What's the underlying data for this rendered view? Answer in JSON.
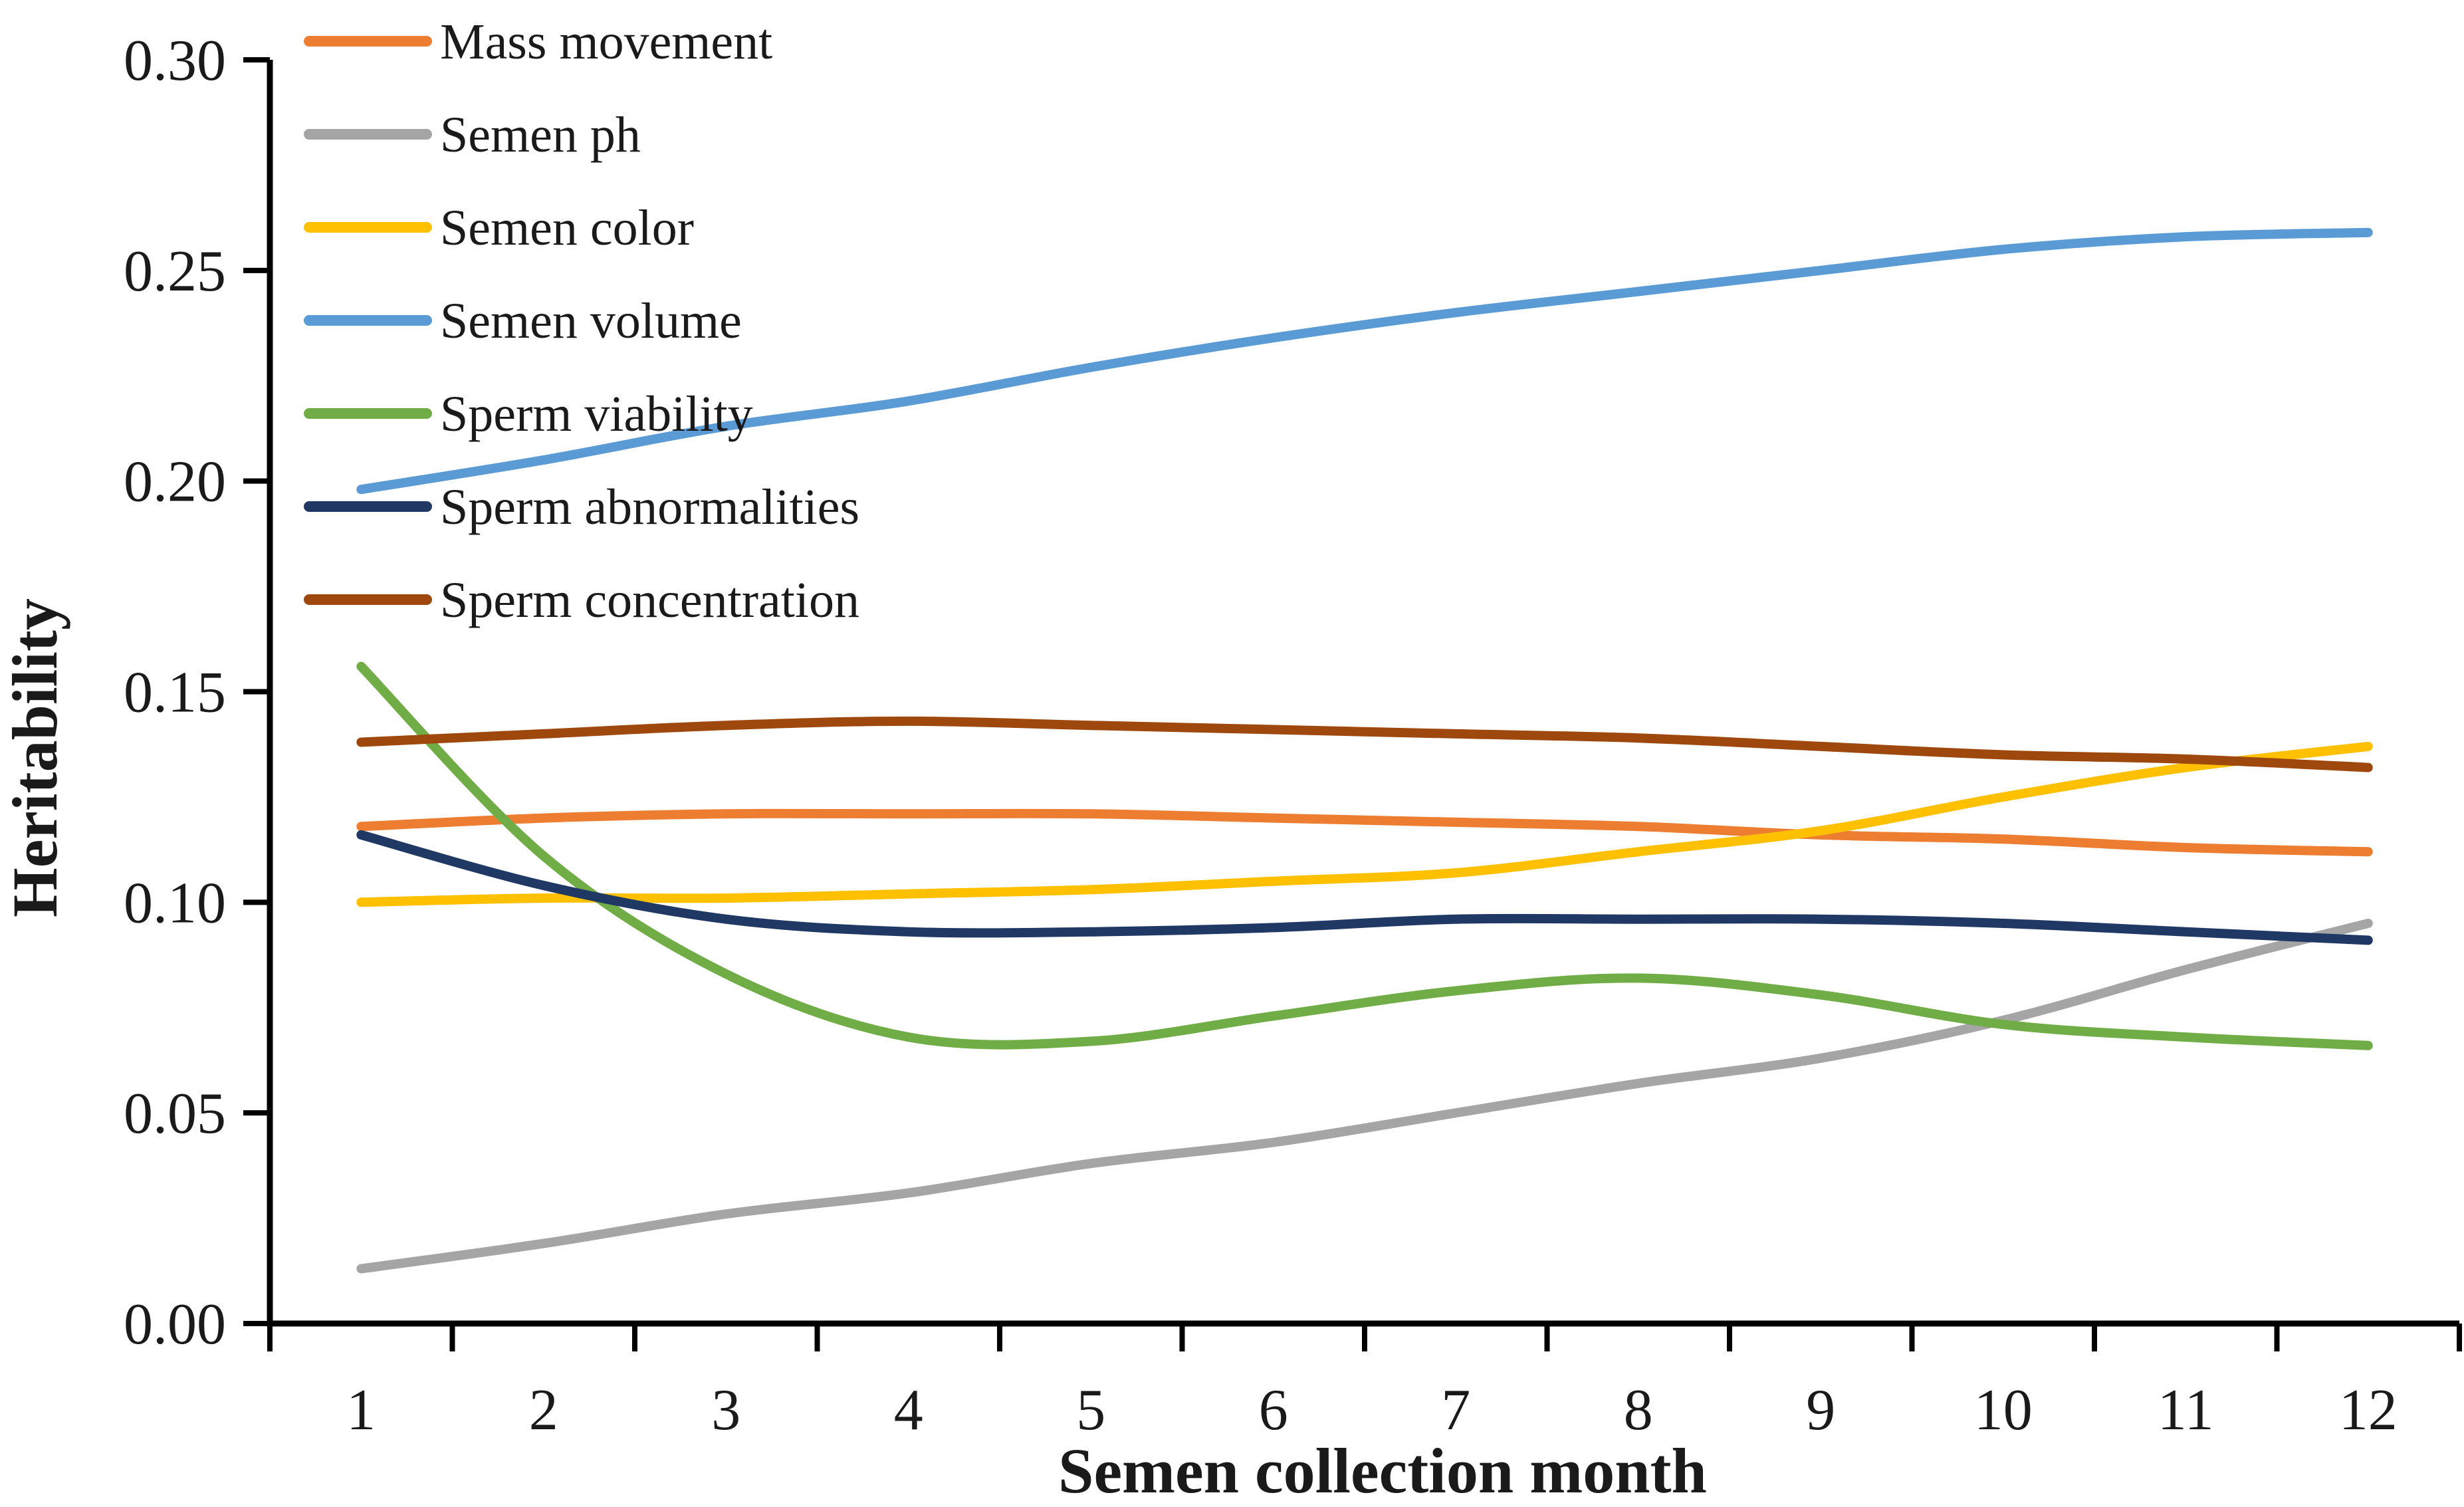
{
  "figure": {
    "background": "#FFFFFF",
    "axis_color": "#000000",
    "text_color": "#1A1A1A"
  },
  "chart_data": {
    "type": "line",
    "title": "",
    "xlabel": "Semen collection month",
    "ylabel": "Heritability",
    "x": [
      1,
      2,
      3,
      4,
      5,
      6,
      7,
      8,
      9,
      10,
      11,
      12
    ],
    "x_tick_labels": [
      "1",
      "2",
      "3",
      "4",
      "5",
      "6",
      "7",
      "8",
      "9",
      "10",
      "11",
      "12"
    ],
    "y_tick_labels": [
      "0.00",
      "0.05",
      "0.10",
      "0.15",
      "0.20",
      "0.25",
      "0.30"
    ],
    "ylim": [
      0.0,
      0.3
    ],
    "y_tick_step": 0.05,
    "grid": false,
    "legend_position": "top-left",
    "line_style": "smooth",
    "series": [
      {
        "name": "Mass movement",
        "color": "#ED7D31",
        "values": [
          0.118,
          0.12,
          0.121,
          0.121,
          0.121,
          0.12,
          0.119,
          0.118,
          0.116,
          0.115,
          0.113,
          0.112
        ]
      },
      {
        "name": "Semen ph",
        "color": "#A5A5A5",
        "values": [
          0.013,
          0.019,
          0.026,
          0.031,
          0.038,
          0.043,
          0.05,
          0.057,
          0.063,
          0.072,
          0.084,
          0.095
        ]
      },
      {
        "name": "Semen color",
        "color": "#FFC000",
        "values": [
          0.1,
          0.101,
          0.101,
          0.102,
          0.103,
          0.105,
          0.107,
          0.112,
          0.117,
          0.125,
          0.132,
          0.137
        ]
      },
      {
        "name": "Semen volume",
        "color": "#5B9BD5",
        "values": [
          0.198,
          0.205,
          0.213,
          0.219,
          0.227,
          0.234,
          0.24,
          0.245,
          0.25,
          0.255,
          0.258,
          0.259
        ]
      },
      {
        "name": "Sperm viability",
        "color": "#70AD47",
        "values": [
          0.156,
          0.111,
          0.083,
          0.068,
          0.067,
          0.073,
          0.079,
          0.082,
          0.078,
          0.071,
          0.068,
          0.066
        ]
      },
      {
        "name": "Sperm abnormalities",
        "color": "#1F3864",
        "values": [
          0.116,
          0.104,
          0.096,
          0.093,
          0.093,
          0.094,
          0.096,
          0.096,
          0.096,
          0.095,
          0.093,
          0.091
        ]
      },
      {
        "name": "Sperm concentration",
        "color": "#9E480E",
        "values": [
          0.138,
          0.14,
          0.142,
          0.143,
          0.142,
          0.141,
          0.14,
          0.139,
          0.137,
          0.135,
          0.134,
          0.132
        ]
      }
    ]
  }
}
